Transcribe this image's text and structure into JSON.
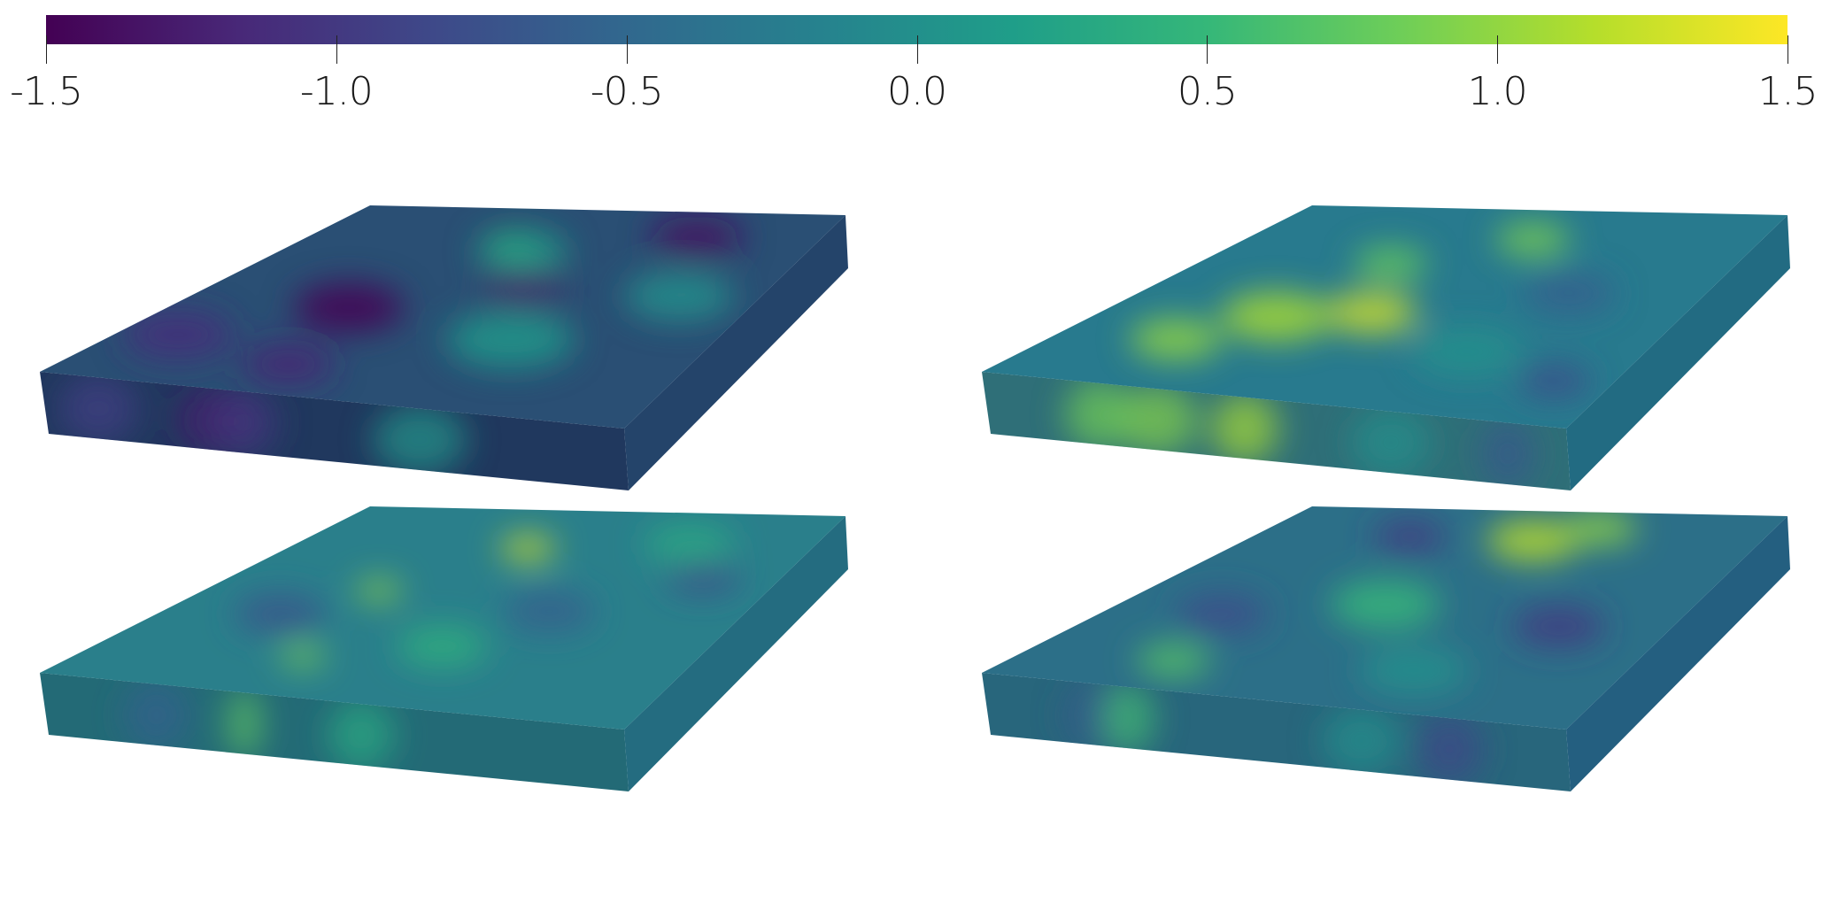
{
  "colorbar": {
    "min": -1.5,
    "max": 1.5,
    "colormap": "viridis",
    "colors": [
      "#440154",
      "#482878",
      "#3e4989",
      "#31688e",
      "#26828e",
      "#1f9e89",
      "#35b779",
      "#6ece58",
      "#b5de2b",
      "#fde725"
    ],
    "ticks": [
      {
        "value": -1.5,
        "label": "-1.5"
      },
      {
        "value": -1.0,
        "label": "-1.0"
      },
      {
        "value": -0.5,
        "label": "-0.5"
      },
      {
        "value": 0.0,
        "label": "0.0"
      },
      {
        "value": 0.5,
        "label": "0.5"
      },
      {
        "value": 1.0,
        "label": "1.0"
      },
      {
        "value": 1.5,
        "label": "1.5"
      }
    ]
  },
  "panels": [
    {
      "name": "top-left",
      "base_color": "#2a4f74",
      "side_color": "#24446a",
      "front_color": "#20385e",
      "blobs": [
        {
          "value": -1.5,
          "u": 0.3,
          "v": 0.55,
          "r": 0.12
        },
        {
          "value": -1.4,
          "u": 0.75,
          "v": 0.12,
          "r": 0.1
        },
        {
          "value": -1.3,
          "u": 0.55,
          "v": 0.4,
          "r": 0.09
        },
        {
          "value": -1.2,
          "u": 0.35,
          "v": 0.85,
          "r": 0.1
        },
        {
          "value": -1.1,
          "u": 0.1,
          "v": 0.75,
          "r": 0.12
        },
        {
          "value": 0.2,
          "u": 0.45,
          "v": 0.22,
          "r": 0.1
        },
        {
          "value": 0.4,
          "u": 0.4,
          "v": 0.18,
          "r": 0.05
        },
        {
          "value": 0.1,
          "u": 0.65,
          "v": 0.65,
          "r": 0.14
        },
        {
          "value": 0.0,
          "u": 0.85,
          "v": 0.4,
          "r": 0.12
        }
      ]
    },
    {
      "name": "top-right",
      "base_color": "#287a8e",
      "side_color": "#226b82",
      "front_color": "#2f6f78",
      "blobs": [
        {
          "value": 1.3,
          "u": 0.45,
          "v": 0.55,
          "r": 0.1
        },
        {
          "value": 1.1,
          "u": 0.3,
          "v": 0.6,
          "r": 0.12
        },
        {
          "value": 1.0,
          "u": 0.2,
          "v": 0.75,
          "r": 0.1
        },
        {
          "value": 0.9,
          "u": 0.55,
          "v": 0.15,
          "r": 0.08
        },
        {
          "value": 0.8,
          "u": 0.35,
          "v": 0.3,
          "r": 0.08
        },
        {
          "value": -0.6,
          "u": 0.75,
          "v": 0.4,
          "r": 0.1
        },
        {
          "value": -0.8,
          "u": 0.9,
          "v": 0.8,
          "r": 0.08
        },
        {
          "value": 0.0,
          "u": 0.7,
          "v": 0.7,
          "r": 0.12
        }
      ]
    },
    {
      "name": "bottom-left",
      "base_color": "#2a7f8b",
      "side_color": "#246c80",
      "front_color": "#236a76",
      "blobs": [
        {
          "value": 1.3,
          "u": 0.45,
          "v": 0.2,
          "r": 0.06
        },
        {
          "value": 1.0,
          "u": 0.3,
          "v": 0.45,
          "r": 0.05
        },
        {
          "value": 0.9,
          "u": 0.35,
          "v": 0.8,
          "r": 0.05
        },
        {
          "value": -0.7,
          "u": 0.2,
          "v": 0.6,
          "r": 0.1
        },
        {
          "value": -0.6,
          "u": 0.65,
          "v": 0.5,
          "r": 0.1
        },
        {
          "value": -0.8,
          "u": 0.85,
          "v": 0.3,
          "r": 0.08
        },
        {
          "value": 0.4,
          "u": 0.55,
          "v": 0.7,
          "r": 0.1
        },
        {
          "value": 0.3,
          "u": 0.75,
          "v": 0.15,
          "r": 0.1
        }
      ]
    },
    {
      "name": "bottom-right",
      "base_color": "#2c6f88",
      "side_color": "#245f80",
      "front_color": "#28667c",
      "blobs": [
        {
          "value": 1.2,
          "u": 0.55,
          "v": 0.15,
          "r": 0.1
        },
        {
          "value": 1.0,
          "u": 0.65,
          "v": 0.08,
          "r": 0.08
        },
        {
          "value": -1.0,
          "u": 0.3,
          "v": 0.15,
          "r": 0.08
        },
        {
          "value": -1.0,
          "u": 0.8,
          "v": 0.55,
          "r": 0.1
        },
        {
          "value": -0.8,
          "u": 0.2,
          "v": 0.6,
          "r": 0.1
        },
        {
          "value": 0.5,
          "u": 0.45,
          "v": 0.5,
          "r": 0.12
        },
        {
          "value": 0.7,
          "u": 0.25,
          "v": 0.85,
          "r": 0.08
        },
        {
          "value": 0.0,
          "u": 0.65,
          "v": 0.8,
          "r": 0.12
        }
      ]
    }
  ]
}
